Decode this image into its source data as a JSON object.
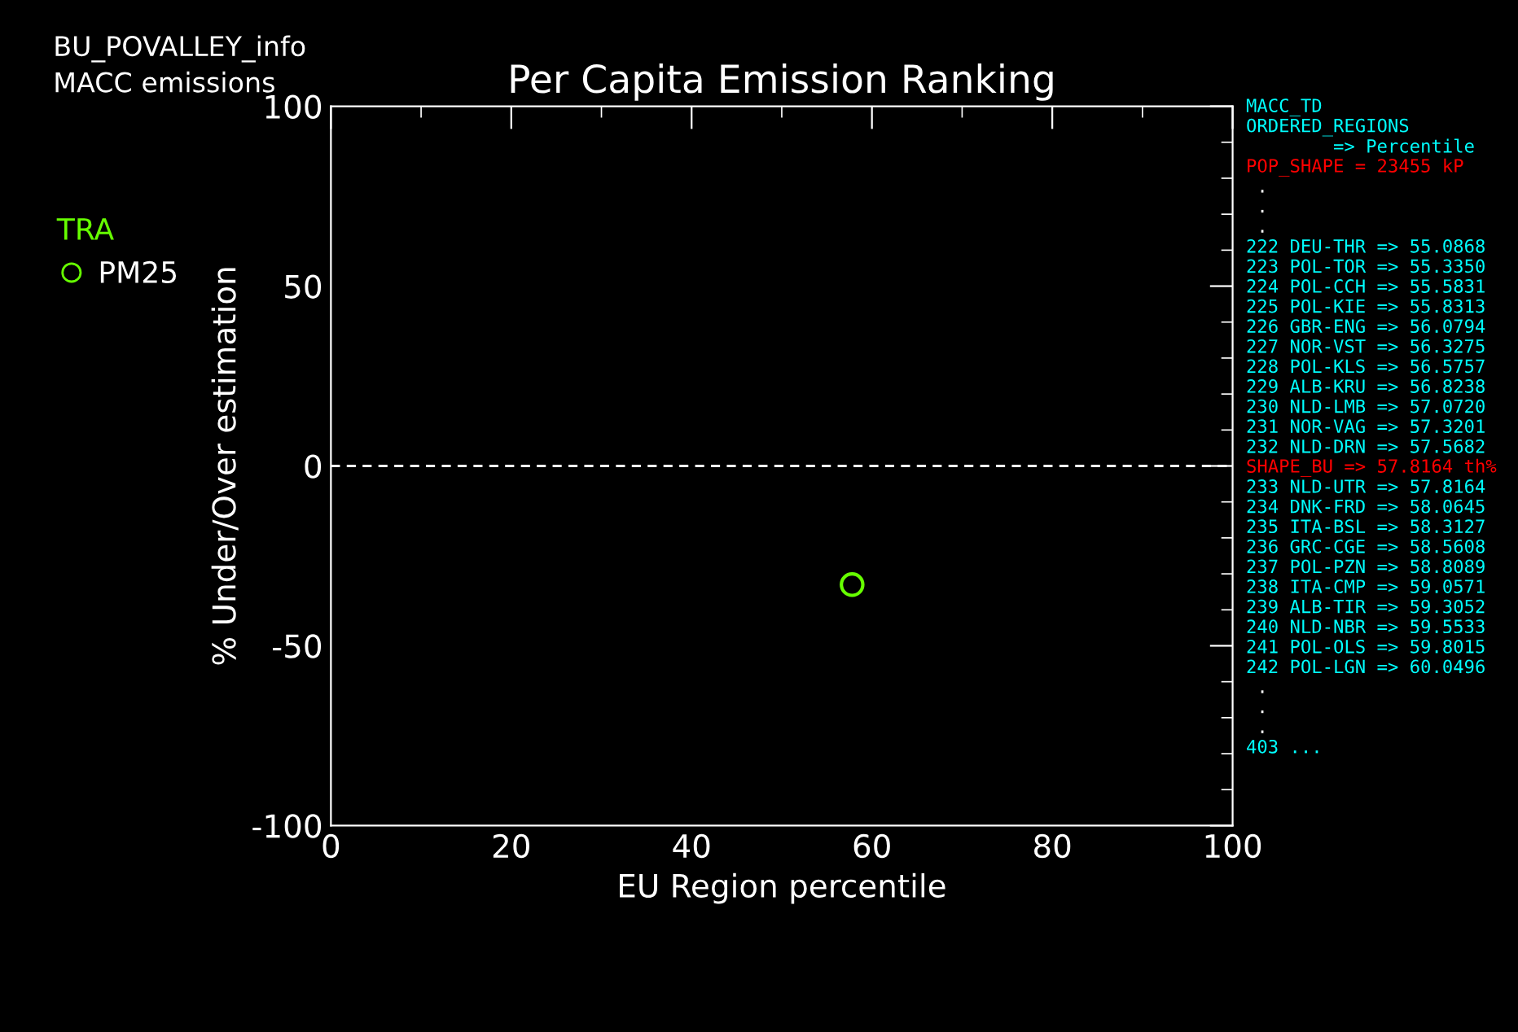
{
  "chart_data": {
    "type": "scatter",
    "title": "Per Capita Emission Ranking",
    "xlabel": "EU Region percentile",
    "ylabel": "% Under/Over estimation",
    "legend_title": "TRA",
    "x": [
      57.8
    ],
    "series": [
      {
        "name": "PM25",
        "color": "#66ff00",
        "values": [
          -33
        ]
      }
    ],
    "xlim": [
      0,
      100
    ],
    "xticks": [
      0,
      20,
      40,
      60,
      80,
      100
    ],
    "ylim": [
      -100,
      100
    ],
    "yticks": [
      -100,
      -50,
      0,
      50,
      100
    ],
    "marker": "circle",
    "grid": false,
    "legend": "left",
    "ref_lines": [
      {
        "axis": "y",
        "value": 0,
        "color": "#ffffff",
        "line_style": "dashed"
      }
    ],
    "annotations": [
      "BU_POVALLEY_info",
      "MACC emissions",
      "MACC_TD",
      "ORDERED_REGIONS",
      "        => Percentile",
      "POP_SHAPE = 23455 kP",
      " .",
      " .",
      " .",
      "222 DEU-THR => 55.0868",
      "223 POL-TOR => 55.3350",
      "224 POL-CCH => 55.5831",
      "225 POL-KIE => 55.8313",
      "226 GBR-ENG => 56.0794",
      "227 NOR-VST => 56.3275",
      "228 POL-KLS => 56.5757",
      "229 ALB-KRU => 56.8238",
      "230 NLD-LMB => 57.0720",
      "231 NOR-VAG => 57.3201",
      "232 NLD-DRN => 57.5682",
      "SHAPE_BU => 57.8164 th%",
      "233 NLD-UTR => 57.8164",
      "234 DNK-FRD => 58.0645",
      "235 ITA-BSL => 58.3127",
      "236 GRC-CGE => 58.5608",
      "237 POL-PZN => 58.8089",
      "238 ITA-CMP => 59.0571",
      "239 ALB-TIR => 59.3052",
      "240 NLD-NBR => 59.5533",
      "241 POL-OLS => 59.8015",
      "242 POL-LGN => 60.0496",
      " .",
      " .",
      " .",
      "403 ..."
    ]
  }
}
